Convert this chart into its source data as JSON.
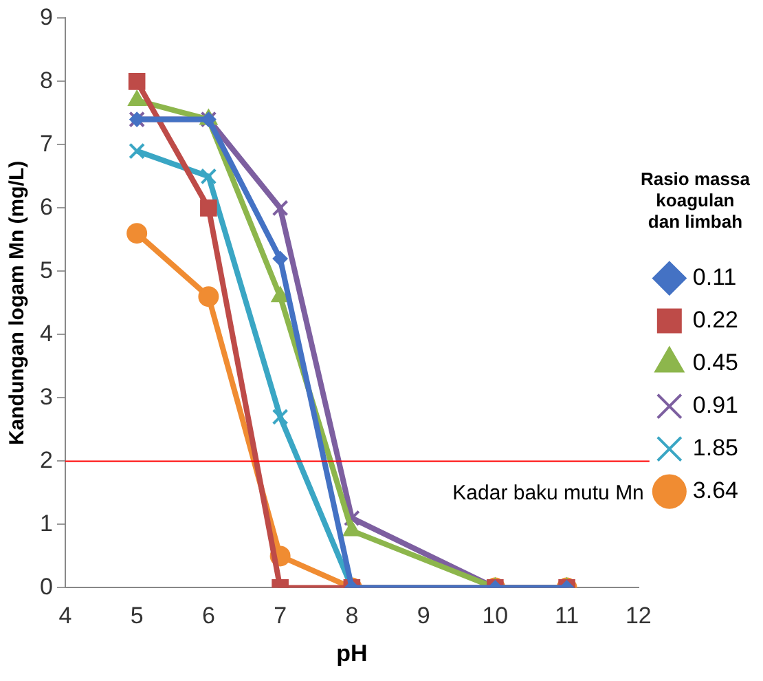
{
  "chart_data": {
    "type": "line",
    "xlabel": "pH",
    "ylabel": "Kandungan logam Mn (mg/L)",
    "legend_title": "Rasio massa koagulan dan limbah",
    "legend": "right",
    "grid": false,
    "x": [
      5,
      6,
      7,
      8,
      10,
      11
    ],
    "xlim": [
      4,
      12
    ],
    "xticks": [
      4,
      5,
      6,
      7,
      8,
      9,
      10,
      11,
      12
    ],
    "ylim": [
      0,
      9
    ],
    "yticks": [
      0,
      1,
      2,
      3,
      4,
      5,
      6,
      7,
      8,
      9
    ],
    "series": [
      {
        "name": "0.11",
        "color": "#4472c4",
        "marker": "diamond",
        "values": [
          7.4,
          7.4,
          5.2,
          0,
          0,
          0
        ]
      },
      {
        "name": "0.22",
        "color": "#be4b48",
        "marker": "square",
        "values": [
          8.0,
          6.0,
          0,
          0,
          0,
          0
        ]
      },
      {
        "name": "0.45",
        "color": "#8db64c",
        "marker": "triangle",
        "values": [
          7.7,
          7.4,
          4.6,
          0.9,
          0,
          0
        ]
      },
      {
        "name": "0.91",
        "color": "#7d5fa0",
        "marker": "cross",
        "values": [
          7.4,
          7.4,
          6.0,
          1.1,
          0,
          0
        ]
      },
      {
        "name": "1.85",
        "color": "#3aa6c4",
        "marker": "cross",
        "values": [
          6.9,
          6.5,
          2.7,
          0,
          0,
          0
        ]
      },
      {
        "name": "3.64",
        "color": "#f08c32",
        "marker": "circle",
        "values": [
          5.6,
          4.6,
          0.5,
          0,
          0,
          0
        ]
      }
    ],
    "ref_lines": [
      {
        "axis": "y",
        "value": 2,
        "color": "#ff0000",
        "label": "Kadar baku mutu Mn"
      }
    ]
  }
}
